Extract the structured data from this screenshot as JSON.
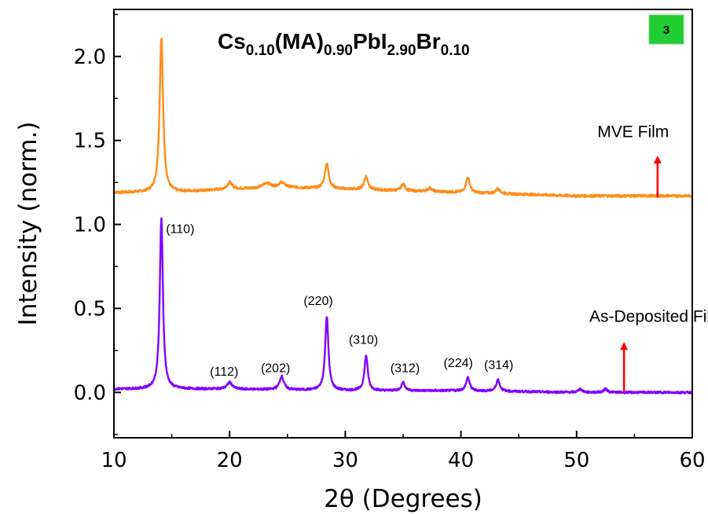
{
  "chart_data": {
    "type": "line",
    "title": {
      "parts": [
        {
          "text": "Cs",
          "sub": false
        },
        {
          "text": "0.10",
          "sub": true
        },
        {
          "text": "(MA)",
          "sub": false
        },
        {
          "text": "0.90",
          "sub": true
        },
        {
          "text": "PbI",
          "sub": false
        },
        {
          "text": "2.90",
          "sub": true
        },
        {
          "text": "Br",
          "sub": false
        },
        {
          "text": "0.10",
          "sub": true
        }
      ]
    },
    "panel_badge": "3",
    "xlabel": "2θ (Degrees)",
    "ylabel": "Intensity (norm.)",
    "xlim": [
      10,
      60
    ],
    "ylim": [
      -0.27,
      2.28
    ],
    "x_ticks": [
      10,
      20,
      30,
      40,
      50,
      60
    ],
    "x_tick_labels": [
      "10",
      "20",
      "30",
      "40",
      "50",
      "60"
    ],
    "y_ticks": [
      0.0,
      0.5,
      1.0,
      1.5,
      2.0
    ],
    "y_tick_labels": [
      "0.0",
      "0.5",
      "1.0",
      "1.5",
      "2.0"
    ],
    "grid": false,
    "series": [
      {
        "name": "MVE Film",
        "color": "#ff8c1a",
        "baseline": [
          [
            10,
            1.19
          ],
          [
            15,
            1.19
          ],
          [
            20,
            1.21
          ],
          [
            25,
            1.22
          ],
          [
            30,
            1.21
          ],
          [
            35,
            1.2
          ],
          [
            40,
            1.19
          ],
          [
            45,
            1.18
          ],
          [
            50,
            1.17
          ],
          [
            55,
            1.17
          ],
          [
            60,
            1.17
          ]
        ],
        "peaks": [
          {
            "x": 14.1,
            "height": 0.92,
            "width": 0.18
          },
          {
            "x": 20.0,
            "height": 0.04,
            "width": 0.25
          },
          {
            "x": 23.2,
            "height": 0.03,
            "width": 0.4
          },
          {
            "x": 24.5,
            "height": 0.03,
            "width": 0.3
          },
          {
            "x": 28.4,
            "height": 0.15,
            "width": 0.2
          },
          {
            "x": 31.8,
            "height": 0.08,
            "width": 0.2
          },
          {
            "x": 35.0,
            "height": 0.04,
            "width": 0.2
          },
          {
            "x": 37.3,
            "height": 0.02,
            "width": 0.25
          },
          {
            "x": 40.6,
            "height": 0.09,
            "width": 0.2
          },
          {
            "x": 43.2,
            "height": 0.03,
            "width": 0.2
          }
        ],
        "noise": 0.007,
        "label": {
          "text": "MVE Film",
          "x": 51.8,
          "y": 1.52
        },
        "arrow": {
          "x": 57.0,
          "y_from": 1.16,
          "y_to": 1.41,
          "color": "#ff0000"
        }
      },
      {
        "name": "As-Deposited Film",
        "color": "#8000ff",
        "baseline": [
          [
            10,
            0.02
          ],
          [
            20,
            0.02
          ],
          [
            30,
            0.01
          ],
          [
            40,
            0.01
          ],
          [
            50,
            0.0
          ],
          [
            60,
            0.0
          ]
        ],
        "peaks": [
          {
            "x": 14.1,
            "height": 1.02,
            "width": 0.16
          },
          {
            "x": 20.0,
            "height": 0.04,
            "width": 0.25
          },
          {
            "x": 24.5,
            "height": 0.08,
            "width": 0.22
          },
          {
            "x": 28.4,
            "height": 0.44,
            "width": 0.17
          },
          {
            "x": 31.8,
            "height": 0.21,
            "width": 0.17
          },
          {
            "x": 35.0,
            "height": 0.05,
            "width": 0.18
          },
          {
            "x": 40.6,
            "height": 0.08,
            "width": 0.18
          },
          {
            "x": 43.2,
            "height": 0.07,
            "width": 0.18
          },
          {
            "x": 50.3,
            "height": 0.02,
            "width": 0.2
          },
          {
            "x": 52.5,
            "height": 0.02,
            "width": 0.2
          }
        ],
        "noise": 0.006,
        "label": {
          "text": "As-Deposited Film",
          "x": 51.1,
          "y": 0.42
        },
        "arrow": {
          "x": 54.1,
          "y_from": 0.0,
          "y_to": 0.3,
          "color": "#ff0000"
        }
      }
    ],
    "annotations": [
      {
        "text": "(110)",
        "x": 14.5,
        "y": 0.95
      },
      {
        "text": "(112)",
        "x": 18.3,
        "y": 0.1
      },
      {
        "text": "(202)",
        "x": 22.7,
        "y": 0.12
      },
      {
        "text": "(220)",
        "x": 26.4,
        "y": 0.52
      },
      {
        "text": "(310)",
        "x": 30.3,
        "y": 0.29
      },
      {
        "text": "(312)",
        "x": 33.9,
        "y": 0.12
      },
      {
        "text": "(224)",
        "x": 38.5,
        "y": 0.15
      },
      {
        "text": "(314)",
        "x": 42.0,
        "y": 0.14
      }
    ]
  }
}
